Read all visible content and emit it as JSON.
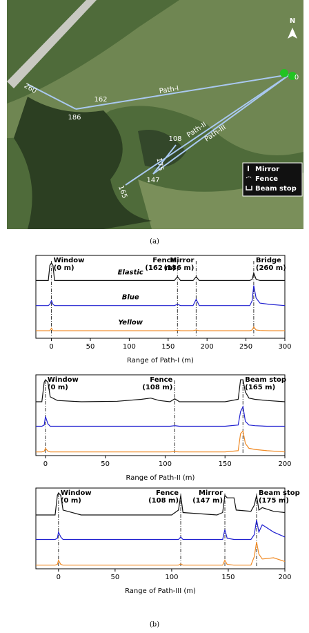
{
  "map": {
    "north": "N",
    "points": [
      "0",
      "260",
      "186",
      "162",
      "108",
      "147",
      "175",
      "165"
    ],
    "paths": [
      "Path-I",
      "Path-II",
      "Path-III"
    ],
    "legend": [
      "Mirror",
      "Fence",
      "Beam stop"
    ]
  },
  "captions": {
    "a": "(a)",
    "b": "(b)"
  },
  "chart_data": [
    {
      "type": "line",
      "xlabel": "Range of Path-I (m)",
      "xlim": [
        -20,
        300
      ],
      "xticks": [
        0,
        50,
        100,
        150,
        200,
        250,
        300
      ],
      "ylim": [
        0,
        3.3
      ],
      "x": [
        -20,
        -4,
        -2,
        0,
        2,
        4,
        20,
        60,
        100,
        140,
        158,
        162,
        166,
        182,
        186,
        190,
        240,
        255,
        258,
        260,
        263,
        268,
        280,
        300
      ],
      "series": [
        {
          "name": "Elastic",
          "color": "#111111",
          "values": [
            2.3,
            2.3,
            2.9,
            3.0,
            2.9,
            2.3,
            2.3,
            2.3,
            2.3,
            2.3,
            2.3,
            2.45,
            2.3,
            2.3,
            2.45,
            2.3,
            2.3,
            2.3,
            2.35,
            2.6,
            2.35,
            2.3,
            2.3,
            2.3
          ]
        },
        {
          "name": "Blue",
          "color": "#2020d0",
          "values": [
            1.3,
            1.3,
            1.35,
            1.5,
            1.35,
            1.3,
            1.3,
            1.3,
            1.3,
            1.3,
            1.3,
            1.35,
            1.3,
            1.3,
            1.55,
            1.3,
            1.3,
            1.3,
            1.5,
            2.1,
            1.6,
            1.4,
            1.35,
            1.3
          ]
        },
        {
          "name": "Yellow",
          "color": "#f08a24",
          "values": [
            0.3,
            0.3,
            0.3,
            0.4,
            0.3,
            0.3,
            0.3,
            0.3,
            0.3,
            0.3,
            0.3,
            0.32,
            0.3,
            0.3,
            0.33,
            0.3,
            0.3,
            0.3,
            0.33,
            0.45,
            0.33,
            0.31,
            0.3,
            0.3
          ]
        }
      ],
      "markers": [
        {
          "x": 0,
          "label": [
            "Window",
            "(0 m)"
          ]
        },
        {
          "x": 162,
          "label": [
            "Fence",
            "(162 m)"
          ]
        },
        {
          "x": 186,
          "label": [
            "Mirror",
            "(186 m)"
          ]
        },
        {
          "x": 260,
          "label": [
            "Bridge",
            "(260 m)"
          ]
        }
      ]
    },
    {
      "type": "line",
      "xlabel": "Range of Path-II (m)",
      "xlim": [
        -8,
        200
      ],
      "xticks": [
        0,
        50,
        100,
        150,
        200
      ],
      "ylim": [
        0,
        3.3
      ],
      "x": [
        -8,
        -3,
        -1,
        0,
        2,
        4,
        10,
        30,
        60,
        80,
        88,
        95,
        104,
        108,
        112,
        150,
        161,
        163,
        165,
        167,
        170,
        175,
        185,
        200
      ],
      "series": [
        {
          "color": "#111111",
          "values": [
            2.2,
            2.2,
            3.0,
            3.1,
            3.0,
            2.4,
            2.25,
            2.2,
            2.22,
            2.3,
            2.35,
            2.25,
            2.2,
            2.32,
            2.2,
            2.2,
            2.3,
            3.1,
            3.1,
            2.6,
            2.35,
            2.3,
            2.25,
            2.2
          ]
        },
        {
          "color": "#2020d0",
          "values": [
            1.2,
            1.2,
            1.25,
            1.6,
            1.3,
            1.2,
            1.2,
            1.2,
            1.2,
            1.2,
            1.2,
            1.2,
            1.2,
            1.22,
            1.2,
            1.2,
            1.25,
            1.8,
            2.0,
            1.4,
            1.25,
            1.22,
            1.2,
            1.2
          ]
        },
        {
          "color": "#f08a24",
          "values": [
            0.15,
            0.15,
            0.18,
            0.3,
            0.18,
            0.15,
            0.15,
            0.15,
            0.15,
            0.15,
            0.15,
            0.15,
            0.15,
            0.16,
            0.15,
            0.15,
            0.2,
            0.9,
            1.0,
            0.5,
            0.3,
            0.25,
            0.2,
            0.15
          ]
        }
      ],
      "markers": [
        {
          "x": 0,
          "label": [
            "Window",
            "(0 m)"
          ]
        },
        {
          "x": 108,
          "label": [
            "Fence",
            "(108 m)"
          ]
        },
        {
          "x": 165,
          "label": [
            "Beam stop",
            "(165 m)"
          ]
        }
      ]
    },
    {
      "type": "line",
      "xlabel": "Range of Path-III (m)",
      "xlim": [
        -20,
        200
      ],
      "xticks": [
        0,
        50,
        100,
        150,
        200
      ],
      "ylim": [
        0,
        3.3
      ],
      "x": [
        -20,
        -3,
        -1,
        0,
        2,
        4,
        20,
        60,
        100,
        106,
        108,
        110,
        140,
        145,
        147,
        149,
        155,
        157,
        170,
        173,
        175,
        177,
        180,
        190,
        200
      ],
      "series": [
        {
          "color": "#111111",
          "values": [
            2.2,
            2.2,
            3.0,
            3.1,
            3.0,
            2.4,
            2.2,
            2.2,
            2.2,
            2.4,
            3.0,
            2.3,
            2.2,
            2.3,
            3.0,
            2.9,
            2.9,
            2.4,
            2.35,
            2.6,
            3.0,
            2.4,
            2.5,
            2.35,
            2.3
          ]
        },
        {
          "color": "#2020d0",
          "values": [
            1.2,
            1.2,
            1.25,
            1.5,
            1.3,
            1.2,
            1.2,
            1.2,
            1.2,
            1.2,
            1.3,
            1.2,
            1.2,
            1.2,
            1.6,
            1.25,
            1.2,
            1.2,
            1.2,
            1.4,
            2.0,
            1.5,
            1.8,
            1.5,
            1.3
          ]
        },
        {
          "color": "#f08a24",
          "values": [
            0.15,
            0.15,
            0.18,
            0.35,
            0.18,
            0.15,
            0.15,
            0.15,
            0.15,
            0.15,
            0.2,
            0.15,
            0.15,
            0.15,
            0.35,
            0.18,
            0.15,
            0.15,
            0.15,
            0.5,
            1.1,
            0.6,
            0.4,
            0.45,
            0.3
          ]
        }
      ],
      "markers": [
        {
          "x": 0,
          "label": [
            "Window",
            "(0 m)"
          ]
        },
        {
          "x": 108,
          "label": [
            "Fence",
            "(108 m)"
          ]
        },
        {
          "x": 147,
          "label": [
            "Mirror",
            "(147 m)"
          ]
        },
        {
          "x": 175,
          "label": [
            "Beam stop",
            "(175 m)"
          ]
        }
      ]
    }
  ]
}
